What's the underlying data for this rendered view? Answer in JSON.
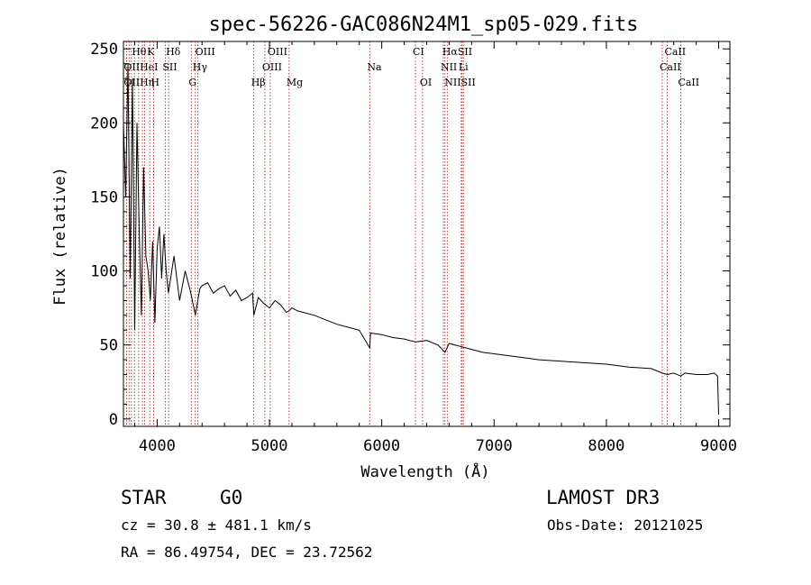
{
  "chart_data": {
    "type": "line",
    "title": "spec-56226-GAC086N24M1_sp05-029.fits",
    "xlabel": "Wavelength (Å)",
    "ylabel": "Flux (relative)",
    "xlim": [
      3700,
      9100
    ],
    "ylim": [
      -5,
      255
    ],
    "xticks": [
      4000,
      5000,
      6000,
      7000,
      8000,
      9000
    ],
    "yticks": [
      0,
      50,
      100,
      150,
      200,
      250
    ],
    "line_color": "#000000",
    "marker_color": "#a01010",
    "series": [
      {
        "name": "spectrum",
        "x": [
          3700,
          3720,
          3740,
          3760,
          3780,
          3800,
          3820,
          3840,
          3860,
          3880,
          3900,
          3920,
          3940,
          3960,
          3980,
          4000,
          4020,
          4040,
          4060,
          4080,
          4100,
          4150,
          4200,
          4250,
          4300,
          4340,
          4380,
          4400,
          4450,
          4500,
          4550,
          4600,
          4650,
          4700,
          4750,
          4800,
          4850,
          4861,
          4900,
          4950,
          5000,
          5050,
          5100,
          5150,
          5175,
          5200,
          5250,
          5300,
          5400,
          5500,
          5600,
          5700,
          5800,
          5893,
          5900,
          6000,
          6100,
          6200,
          6300,
          6400,
          6500,
          6563,
          6600,
          6700,
          6800,
          6900,
          7000,
          7200,
          7400,
          7600,
          7800,
          8000,
          8200,
          8400,
          8498,
          8542,
          8600,
          8662,
          8700,
          8800,
          8900,
          8960,
          8990,
          9000
        ],
        "y": [
          200,
          150,
          240,
          95,
          230,
          60,
          200,
          130,
          70,
          170,
          110,
          100,
          80,
          120,
          65,
          115,
          130,
          95,
          125,
          100,
          85,
          110,
          80,
          100,
          85,
          70,
          88,
          90,
          92,
          85,
          88,
          90,
          83,
          87,
          80,
          82,
          85,
          70,
          82,
          78,
          75,
          80,
          77,
          72,
          73,
          75,
          73,
          72,
          70,
          67,
          64,
          62,
          60,
          48,
          58,
          57,
          55,
          54,
          52,
          53,
          50,
          45,
          51,
          49,
          47,
          45,
          44,
          42,
          40,
          39,
          38,
          37,
          35,
          34,
          31,
          30,
          31,
          29,
          31,
          30,
          30,
          31,
          29,
          3
        ]
      }
    ],
    "lines_row1": [
      {
        "label": "Hθ",
        "x": 3798
      },
      {
        "label": "K",
        "x": 3934
      },
      {
        "label": "Hδ",
        "x": 4102
      },
      {
        "label": "OIII",
        "x": 4363
      },
      {
        "label": "OIII",
        "x": 5007
      },
      {
        "label": "CI",
        "x": 6300
      },
      {
        "label": "HαSII",
        "x": 6563
      },
      {
        "label": "CaII",
        "x": 8542
      }
    ],
    "lines_row2": [
      {
        "label": "OIIHeI",
        "x": 3727
      },
      {
        "label": "SII",
        "x": 4072
      },
      {
        "label": "Hγ",
        "x": 4340
      },
      {
        "label": "OIII",
        "x": 4959
      },
      {
        "label": "Na",
        "x": 5893
      },
      {
        "label": "NII",
        "x": 6548
      },
      {
        "label": "Li",
        "x": 6708
      },
      {
        "label": "CaII",
        "x": 8498
      }
    ],
    "lines_row3": [
      {
        "label": "OIIHη",
        "x": 3727
      },
      {
        "label": "H",
        "x": 3968
      },
      {
        "label": "G",
        "x": 4304
      },
      {
        "label": "Hβ",
        "x": 4861
      },
      {
        "label": "Mg",
        "x": 5175
      },
      {
        "label": "OI",
        "x": 6363
      },
      {
        "label": "NIISII",
        "x": 6583
      },
      {
        "label": "CaII",
        "x": 8662
      }
    ],
    "marker_lines": [
      3727,
      3750,
      3771,
      3798,
      3835,
      3869,
      3889,
      3934,
      3968,
      4072,
      4102,
      4304,
      4340,
      4363,
      4861,
      4959,
      5007,
      5175,
      5893,
      6300,
      6363,
      6548,
      6563,
      6583,
      6708,
      6716,
      6731,
      8498,
      8542,
      8662
    ]
  },
  "info": {
    "class": "STAR",
    "subclass": "G0",
    "survey": "LAMOST DR3",
    "redshift": "cz = 30.8 ± 481.1 km/s",
    "obs_date": "Obs-Date: 20121025",
    "coords": "RA =  86.49754, DEC =  23.72562"
  }
}
